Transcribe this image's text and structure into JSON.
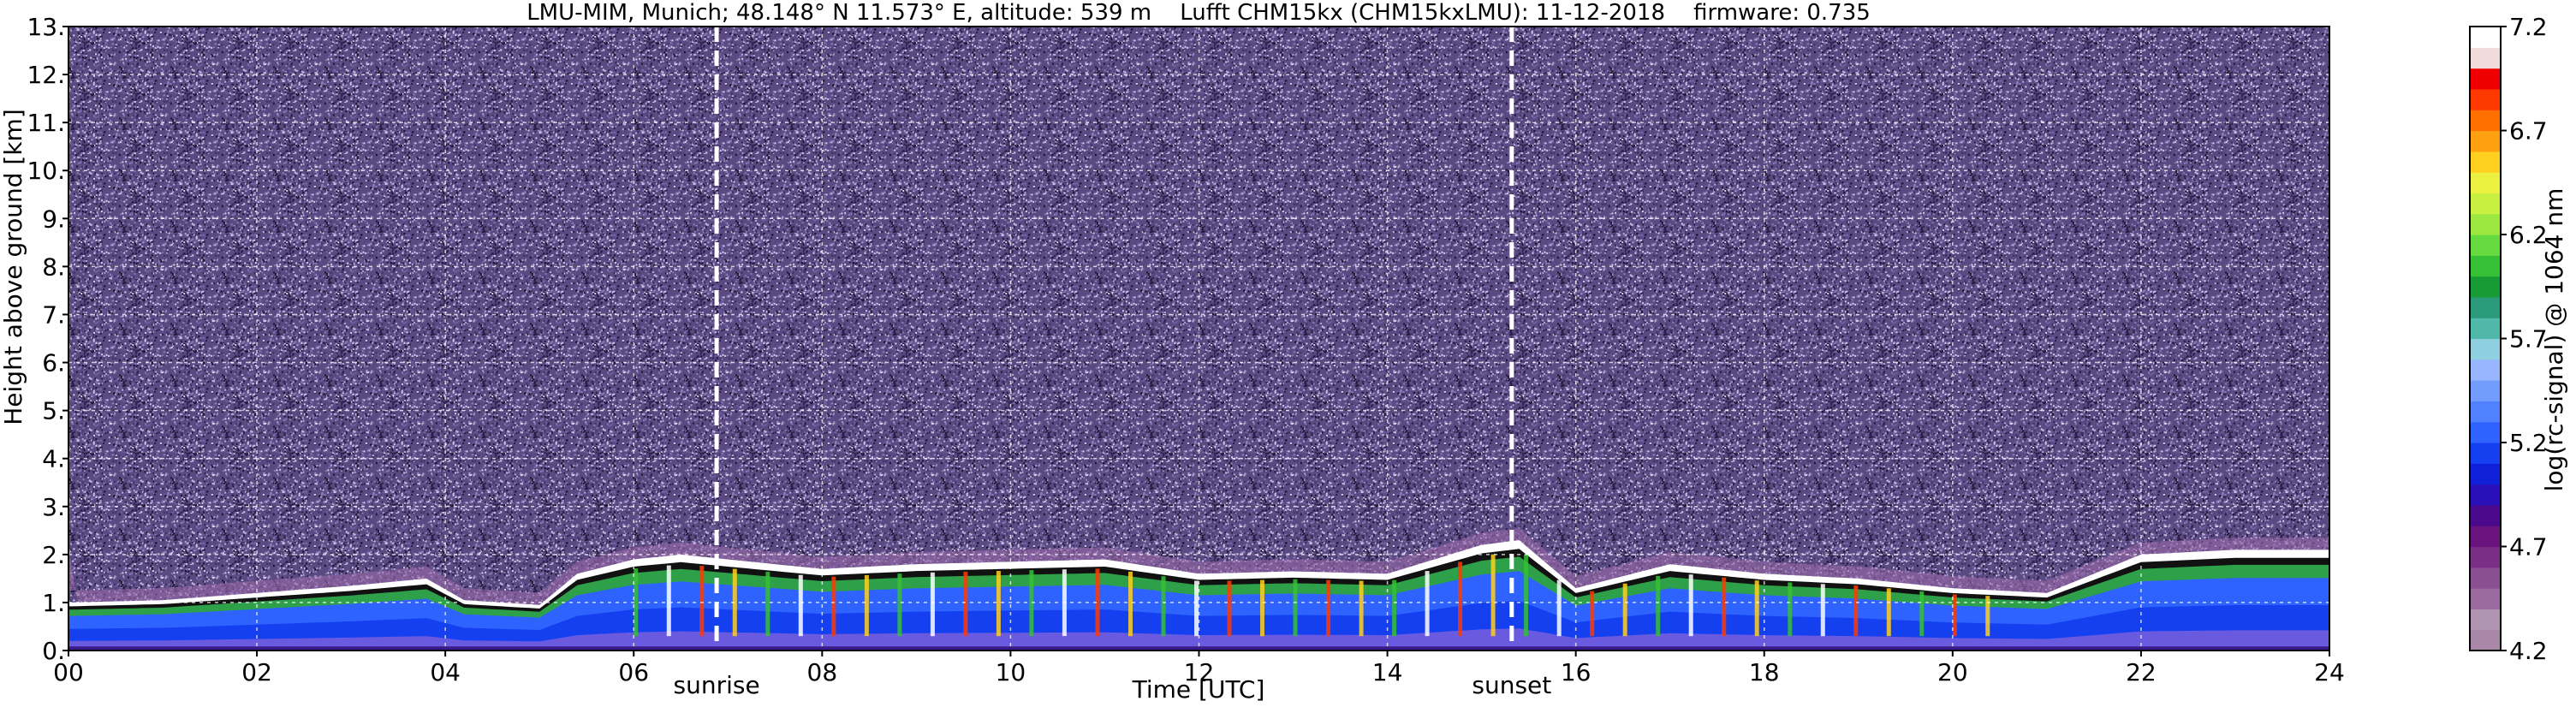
{
  "chart_data": {
    "type": "heatmap",
    "title": "LMU-MIM, Munich; 48.148° N 11.573° E, altitude: 539 m    Lufft CHM15kx (CHM15kxLMU): 11-12-2018    firmware: 0.735",
    "xlabel": "Time [UTC]",
    "ylabel": "Height above ground [km]",
    "xlim": [
      0,
      24
    ],
    "ylim": [
      0,
      13
    ],
    "x_ticks": [
      "00",
      "02",
      "04",
      "06",
      "08",
      "10",
      "12",
      "14",
      "16",
      "18",
      "20",
      "22",
      "24"
    ],
    "y_ticks": [
      "0.",
      "1.",
      "2.",
      "3.",
      "4.",
      "5.",
      "6.",
      "7.",
      "8.",
      "9.",
      "10.",
      "11.",
      "12.",
      "13."
    ],
    "grid": true,
    "annotations": [
      {
        "label": "sunrise",
        "x": 6.88
      },
      {
        "label": "sunset",
        "x": 15.32
      }
    ],
    "colorbar": {
      "label": "log(rc-signal) @ 1064 nm",
      "range": [
        4.2,
        7.2
      ],
      "ticks": [
        "4.2",
        "4.7",
        "5.2",
        "5.7",
        "6.2",
        "6.7",
        "7.2"
      ],
      "colors": [
        "#a887a8",
        "#b093b0",
        "#9a6a9e",
        "#8a4f90",
        "#7a2e86",
        "#6a137e",
        "#4b0a8c",
        "#2a10b8",
        "#1020d8",
        "#1540f0",
        "#2f63ff",
        "#5082ff",
        "#739cff",
        "#97b6ff",
        "#8fd0e0",
        "#4fb8a8",
        "#2a9a7a",
        "#189a35",
        "#35c035",
        "#66d840",
        "#9ce840",
        "#c8f040",
        "#ecf040",
        "#ffd020",
        "#ffa010",
        "#ff7000",
        "#ff3a00",
        "#ee0000",
        "#f0dada",
        "#ffffff"
      ]
    },
    "layers": {
      "boundary_layer_top_km": [
        [
          0,
          1.0
        ],
        [
          1,
          1.05
        ],
        [
          2,
          1.2
        ],
        [
          3,
          1.35
        ],
        [
          3.8,
          1.5
        ],
        [
          4.2,
          1.05
        ],
        [
          5,
          0.95
        ],
        [
          5.4,
          1.6
        ],
        [
          6,
          1.9
        ],
        [
          6.5,
          2.0
        ],
        [
          7,
          1.9
        ],
        [
          8,
          1.7
        ],
        [
          9,
          1.8
        ],
        [
          10,
          1.85
        ],
        [
          11,
          1.9
        ],
        [
          12,
          1.6
        ],
        [
          13,
          1.65
        ],
        [
          14,
          1.6
        ],
        [
          15,
          2.2
        ],
        [
          15.4,
          2.3
        ],
        [
          16,
          1.3
        ],
        [
          17,
          1.8
        ],
        [
          18,
          1.6
        ],
        [
          19,
          1.5
        ],
        [
          20,
          1.3
        ],
        [
          21,
          1.2
        ],
        [
          22,
          2.0
        ],
        [
          23,
          2.1
        ],
        [
          24,
          2.1
        ]
      ]
    }
  }
}
